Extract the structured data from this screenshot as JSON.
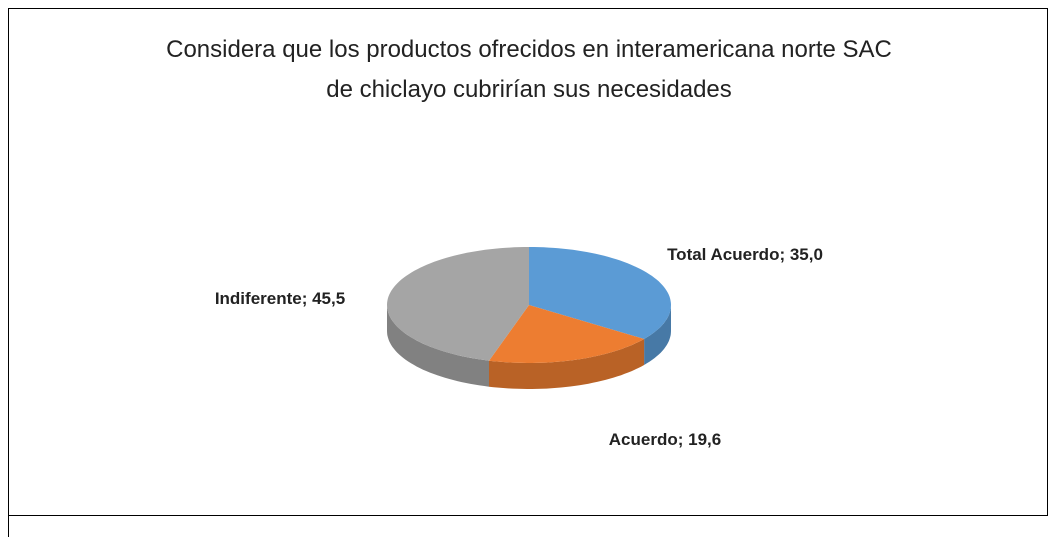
{
  "chart_data": {
    "type": "pie",
    "title": "Considera que los productos ofrecidos en interamericana norte SAC de chiclayo cubrirían sus necesidades",
    "values": [
      35.0,
      19.6,
      45.5
    ],
    "value_labels": [
      "Total Acuerdo; 35,0",
      "Acuerdo; 19,6",
      "Indiferente; 45,5"
    ],
    "colors": [
      "#5b9bd5",
      "#ed7d31",
      "#a5a5a5"
    ]
  }
}
